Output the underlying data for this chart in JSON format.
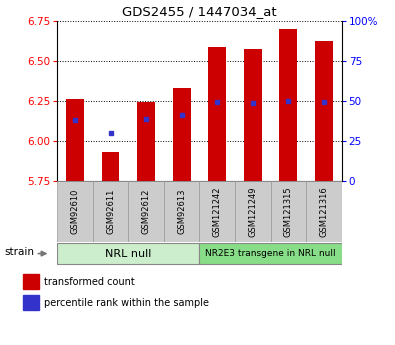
{
  "title": "GDS2455 / 1447034_at",
  "samples": [
    "GSM92610",
    "GSM92611",
    "GSM92612",
    "GSM92613",
    "GSM121242",
    "GSM121249",
    "GSM121315",
    "GSM121316"
  ],
  "bar_bottoms": [
    5.75,
    5.75,
    5.75,
    5.75,
    5.75,
    5.75,
    5.75,
    5.75
  ],
  "bar_tops": [
    6.26,
    5.93,
    6.245,
    6.33,
    6.585,
    6.575,
    6.7,
    6.625
  ],
  "percentile_values": [
    6.13,
    6.05,
    6.14,
    6.165,
    6.245,
    6.24,
    6.25,
    6.245
  ],
  "ylim": [
    5.75,
    6.75
  ],
  "yticks_left": [
    5.75,
    6.0,
    6.25,
    6.5,
    6.75
  ],
  "yticks_right": [
    0,
    25,
    50,
    75,
    100
  ],
  "group1_label": "NRL null",
  "group2_label": "NR2E3 transgene in NRL null",
  "group1_indices": [
    0,
    1,
    2,
    3
  ],
  "group2_indices": [
    4,
    5,
    6,
    7
  ],
  "bar_color": "#cc0000",
  "dot_color": "#3333cc",
  "sample_box_color": "#cccccc",
  "group1_bg": "#cceecc",
  "group2_bg": "#88dd88",
  "legend_bar_label": "transformed count",
  "legend_dot_label": "percentile rank within the sample",
  "strain_label": "strain"
}
